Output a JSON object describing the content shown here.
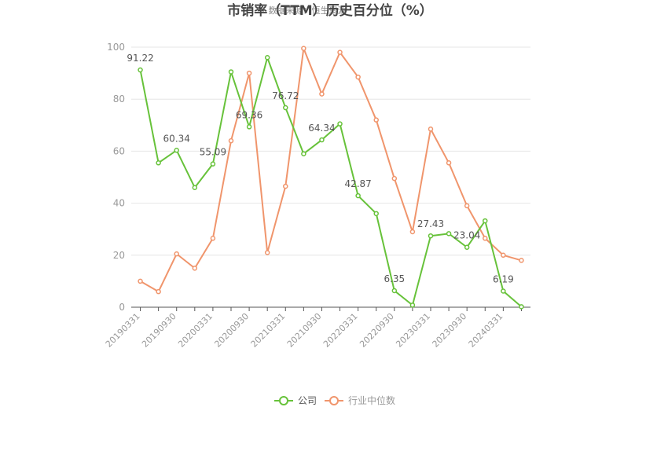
{
  "chart_data": {
    "type": "line",
    "title": "市销率（TTM）历史百分位（%）",
    "subtitle": "数据来源：恒生聚源",
    "ylim": [
      0,
      100
    ],
    "yticks": [
      0,
      20,
      40,
      60,
      80,
      100
    ],
    "grid": true,
    "legend_position": "bottom",
    "x_tick_labels": [
      "20190331",
      "20190930",
      "20200331",
      "20200930",
      "20210331",
      "20210930",
      "20220331",
      "20220930",
      "20230331",
      "20230930",
      "20240331"
    ],
    "x": [
      "20190331",
      "20190630",
      "20190930",
      "20191231",
      "20200331",
      "20200630",
      "20200930",
      "20201231",
      "20210331",
      "20210630",
      "20210930",
      "20211231",
      "20220331",
      "20220630",
      "20220930",
      "20221231",
      "20230331",
      "20230630",
      "20230930",
      "20231231",
      "20240331",
      "20240630"
    ],
    "series": [
      {
        "name": "公司",
        "color": "#67c23a",
        "values": [
          91.22,
          55.5,
          60.34,
          46.0,
          55.09,
          90.5,
          69.36,
          96.0,
          76.72,
          59.0,
          64.34,
          70.5,
          42.87,
          36.0,
          6.35,
          0.8,
          27.43,
          28.3,
          23.04,
          33.2,
          6.19,
          0.2
        ],
        "labels": [
          "91.22",
          "",
          "60.34",
          "",
          "55.09",
          "",
          "69.36",
          "",
          "76.72",
          "",
          "64.34",
          "",
          "42.87",
          "",
          "6.35",
          "",
          "27.43",
          "",
          "23.04",
          "",
          "6.19",
          ""
        ]
      },
      {
        "name": "行业中位数",
        "color": "#f0956c",
        "values": [
          10.0,
          6.0,
          20.5,
          15.0,
          26.5,
          64.0,
          90.0,
          21.0,
          46.5,
          99.5,
          82.0,
          98.0,
          88.5,
          72.0,
          49.5,
          29.0,
          68.5,
          55.5,
          39.0,
          26.5,
          20.0,
          18.0
        ]
      }
    ]
  }
}
